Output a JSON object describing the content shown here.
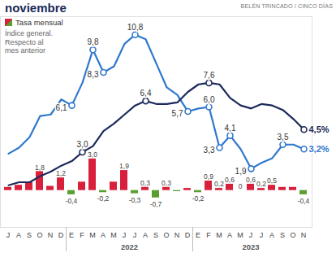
{
  "chart_data": {
    "type": "combo",
    "title": "noviembre",
    "annotation": [
      "Índice general.",
      "Respecto al",
      "mes anterior"
    ],
    "source": "BELÉN TRINCADO / CINCO DÍAS",
    "categories": [
      "J",
      "A",
      "S",
      "O",
      "N",
      "D",
      "E",
      "F",
      "M",
      "A",
      "M",
      "J",
      "J",
      "A",
      "S",
      "O",
      "N",
      "D",
      "E",
      "F",
      "M",
      "A",
      "M",
      "J",
      "J",
      "A",
      "S",
      "O",
      "N"
    ],
    "periods": [
      null,
      null,
      null,
      null,
      null,
      null,
      "2022",
      "2022",
      "2022",
      "2022",
      "2022",
      "2022",
      "2022",
      "2022",
      "2022",
      "2022",
      "2022",
      "2022",
      "2023",
      "2023",
      "2023",
      "2023",
      "2023",
      "2023",
      "2023",
      "2023",
      "2023",
      "2023",
      "2023"
    ],
    "tick_labels": "x",
    "legend": "top-left",
    "ylim": [
      -2,
      12
    ],
    "y2lim": [
      -3.5,
      16.5
    ],
    "series": [
      {
        "name": "Tasa mensual",
        "type": "bar",
        "axis": "y2",
        "values": [
          0.3,
          0.5,
          0.8,
          1.8,
          0.4,
          1.2,
          -0.4,
          0.8,
          3.0,
          -0.2,
          0.8,
          1.9,
          -0.3,
          0.3,
          -0.7,
          0.3,
          -0.1,
          0.2,
          -0.2,
          0.9,
          0.2,
          0.6,
          0,
          0.6,
          0.2,
          0.5,
          0.3,
          0.3,
          -0.4
        ],
        "value_labels": [
          null,
          null,
          null,
          "1,8",
          null,
          "1,2",
          "-0,4",
          null,
          "3,0",
          "-0,2",
          null,
          "1,9",
          "-0,3",
          "0,3",
          "-0,7",
          "0,3",
          null,
          null,
          "-0,2",
          "0,9",
          "0,2",
          "0,6",
          "0",
          "0,6",
          "0,2",
          "0,5",
          null,
          null,
          "-0,4"
        ],
        "colors": [
          "#d81f3b",
          "#d81f3b",
          "#d81f3b",
          "#d81f3b",
          "#d81f3b",
          "#d81f3b",
          "#5a9e2f",
          "#d81f3b",
          "#d81f3b",
          "#5a9e2f",
          "#d81f3b",
          "#d81f3b",
          "#5a9e2f",
          "#d81f3b",
          "#5a9e2f",
          "#d81f3b",
          "#5a9e2f",
          "#d81f3b",
          "#5a9e2f",
          "#d81f3b",
          "#d81f3b",
          "#d81f3b",
          "#d81f3b",
          "#d81f3b",
          "#d81f3b",
          "#d81f3b",
          "#d81f3b",
          "#d81f3b",
          "#5a9e2f"
        ]
      },
      {
        "type": "line",
        "color": "#2f78cc",
        "marker": "circle",
        "values": [
          2.9,
          3.3,
          4.0,
          5.4,
          5.5,
          6.5,
          6.1,
          7.6,
          9.8,
          8.3,
          8.7,
          10.2,
          10.8,
          10.5,
          8.9,
          7.3,
          6.8,
          5.7,
          5.9,
          6.0,
          3.3,
          4.1,
          3.2,
          1.9,
          2.3,
          2.6,
          3.5,
          3.5,
          3.2
        ],
        "value_labels": [
          null,
          null,
          null,
          null,
          null,
          null,
          "6,1",
          null,
          "9,8",
          "8,3",
          null,
          null,
          "10,8",
          null,
          null,
          null,
          null,
          "5,7",
          null,
          "6,0",
          "3,3",
          "4,1",
          null,
          "1,9",
          null,
          null,
          "3,5",
          null,
          "3,2%"
        ]
      },
      {
        "type": "line",
        "color": "#1b2a5a",
        "marker": "circle",
        "values": [
          0.8,
          1.0,
          1.0,
          1.4,
          1.7,
          2.1,
          2.4,
          3.0,
          3.4,
          4.4,
          4.9,
          5.5,
          6.1,
          6.4,
          6.2,
          6.2,
          6.3,
          7.0,
          7.5,
          7.6,
          7.5,
          6.6,
          6.1,
          5.9,
          6.2,
          6.1,
          5.8,
          5.2,
          4.5
        ],
        "value_labels": [
          null,
          null,
          null,
          null,
          null,
          null,
          null,
          "3,0",
          null,
          null,
          null,
          null,
          null,
          "6,4",
          null,
          null,
          null,
          null,
          null,
          "7,6",
          null,
          null,
          null,
          null,
          null,
          null,
          null,
          null,
          "4,5%"
        ]
      }
    ]
  }
}
